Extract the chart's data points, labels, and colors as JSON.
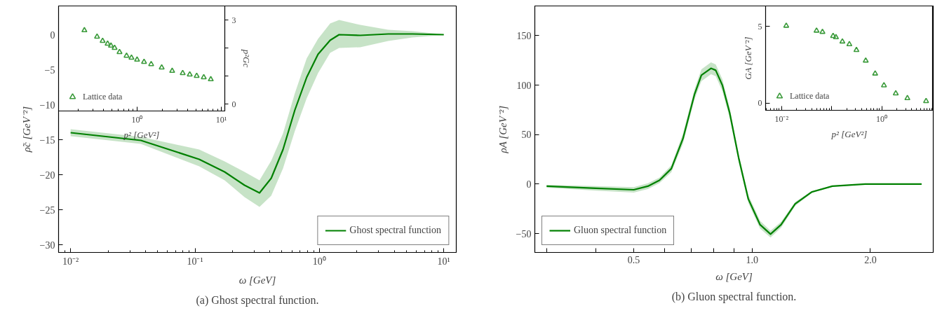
{
  "chart_data": [
    {
      "type": "line",
      "xlabel": "ω [GeV]",
      "ylabel": "ρ̃c [GeV⁻²]",
      "log": "x",
      "xlim": [
        0.008,
        12.6
      ],
      "ylim": [
        -31.1,
        4.1
      ],
      "xticks": [
        {
          "value": 0.01,
          "label": "10⁻²"
        },
        {
          "value": 0.1,
          "label": "10⁻¹"
        },
        {
          "value": 1,
          "label": "10⁰"
        },
        {
          "value": 10,
          "label": "10¹"
        }
      ],
      "yticks": [
        -30,
        -25,
        -20,
        -15,
        -10,
        -5,
        0
      ],
      "legend": "bottom right",
      "annotations": [
        "(a) Ghost spectral function."
      ],
      "series": [
        {
          "name": "Ghost spectral function",
          "color": "#008000",
          "x": [
            0.01,
            0.0367,
            0.108,
            0.173,
            0.25,
            0.33,
            0.41,
            0.51,
            0.634,
            0.79,
            0.975,
            1.22,
            1.44,
            2.13,
            3.58,
            5.6,
            10
          ],
          "values": [
            -14.0,
            -15.1,
            -17.8,
            -19.6,
            -21.5,
            -22.6,
            -20.5,
            -16.4,
            -10.8,
            -6.1,
            -2.8,
            -0.8,
            0,
            -0.1,
            0.1,
            0.1,
            0
          ],
          "lower": [
            -14.5,
            -15.6,
            -18.8,
            -20.8,
            -23.2,
            -24.6,
            -23.0,
            -19.1,
            -13.8,
            -9.1,
            -5.5,
            -2.6,
            -1.9,
            -1.8,
            -0.9,
            -0.4,
            -0.05
          ],
          "upper": [
            -13.5,
            -14.6,
            -16.4,
            -18.1,
            -19.6,
            -20.8,
            -18.0,
            -14.1,
            -8.4,
            -3.4,
            -0.6,
            1.6,
            2.1,
            1.4,
            0.7,
            0.5,
            0.05
          ]
        }
      ]
    },
    {
      "type": "scatter",
      "xlabel": "p² [GeV²]",
      "ylabel": "p²Gc",
      "log": "x",
      "xlim": [
        0.117,
        11
      ],
      "ylim": [
        -0.25,
        3.5
      ],
      "xticks": [
        {
          "value": 1,
          "label": "10⁰"
        },
        {
          "value": 10,
          "label": "10¹"
        }
      ],
      "yticks": [
        0,
        {
          "value": 1,
          "label": null
        },
        {
          "value": 2,
          "label": null
        },
        3
      ],
      "marker": "triangle",
      "legend": "bottom left",
      "series": [
        {
          "name": "Lattice data",
          "color": "#3a9a3a",
          "x": [
            0.237,
            0.335,
            0.39,
            0.447,
            0.49,
            0.541,
            0.619,
            0.75,
            0.858,
            1.0,
            1.21,
            1.47,
            1.96,
            2.61,
            3.48,
            4.22,
            5.1,
            6.19,
            7.5
          ],
          "values": [
            2.63,
            2.4,
            2.25,
            2.15,
            2.08,
            2.0,
            1.85,
            1.72,
            1.65,
            1.58,
            1.5,
            1.42,
            1.3,
            1.18,
            1.1,
            1.05,
            1.0,
            0.95,
            0.88
          ]
        }
      ]
    },
    {
      "type": "line",
      "xlabel": "ω [GeV]",
      "ylabel": "ρA [GeV⁻²]",
      "log": "x",
      "xlim": [
        0.28,
        2.89
      ],
      "ylim": [
        -69,
        180
      ],
      "xticks": [
        {
          "value": 0.3,
          "label": null
        },
        {
          "value": 0.4,
          "label": null
        },
        {
          "value": 0.5,
          "label": "0.5"
        },
        {
          "value": 0.6,
          "label": null
        },
        {
          "value": 0.7,
          "label": null
        },
        {
          "value": 0.8,
          "label": null
        },
        {
          "value": 0.9,
          "label": null
        },
        {
          "value": 1.0,
          "label": "1.0"
        },
        {
          "value": 2.0,
          "label": "2.0"
        }
      ],
      "yticks": [
        -50,
        0,
        50,
        100,
        150
      ],
      "legend": "bottom left",
      "annotations": [
        "(b) Gluon spectral function."
      ],
      "series": [
        {
          "name": "Gluon spectral function",
          "color": "#008000",
          "x": [
            0.3,
            0.4,
            0.5,
            0.543,
            0.581,
            0.623,
            0.667,
            0.714,
            0.743,
            0.786,
            0.808,
            0.84,
            0.877,
            0.926,
            0.978,
            1.048,
            1.114,
            1.185,
            1.287,
            1.417,
            1.6,
            1.94,
            2.7
          ],
          "values": [
            -2.1,
            -4.2,
            -5.7,
            -2.1,
            3.8,
            15.6,
            46,
            91,
            110,
            117,
            115,
            100,
            72,
            25,
            -15,
            -41,
            -50.5,
            -41,
            -20,
            -8,
            -2.1,
            0,
            0
          ],
          "lower": [
            -3.5,
            -6.5,
            -8.5,
            -5,
            1,
            12,
            41,
            86,
            104,
            111,
            109,
            94,
            67,
            21,
            -19,
            -45,
            -54,
            -44,
            -22,
            -9,
            -2.6,
            -0.3,
            -0.3
          ],
          "upper": [
            -0.7,
            -2,
            -3,
            0.8,
            6.6,
            19,
            51,
            96,
            116,
            123,
            121,
            106,
            77,
            29,
            -11,
            -37,
            -47,
            -38,
            -18,
            -7,
            -1.6,
            0.3,
            0.3
          ]
        }
      ]
    },
    {
      "type": "scatter",
      "xlabel": "p² [GeV²]",
      "ylabel": "GA [GeV⁻²]",
      "log": "x",
      "xlim": [
        0.0048,
        10.7
      ],
      "ylim": [
        -0.48,
        6.35
      ],
      "xticks": [
        {
          "value": 0.01,
          "label": "10⁻²"
        },
        {
          "value": 0.1,
          "label": null
        },
        {
          "value": 1,
          "label": "10⁰"
        }
      ],
      "yticks": [
        0,
        5
      ],
      "marker": "triangle",
      "legend": "bottom left",
      "series": [
        {
          "name": "Lattice data",
          "color": "#3a9a3a",
          "x": [
            0.0124,
            0.05,
            0.0656,
            0.107,
            0.122,
            0.164,
            0.226,
            0.313,
            0.48,
            0.74,
            1.11,
            1.91,
            3.26,
            7.7
          ],
          "values": [
            5.05,
            4.73,
            4.65,
            4.38,
            4.3,
            4.02,
            3.84,
            3.46,
            2.77,
            1.92,
            1.15,
            0.62,
            0.31,
            0.12
          ]
        }
      ]
    }
  ]
}
